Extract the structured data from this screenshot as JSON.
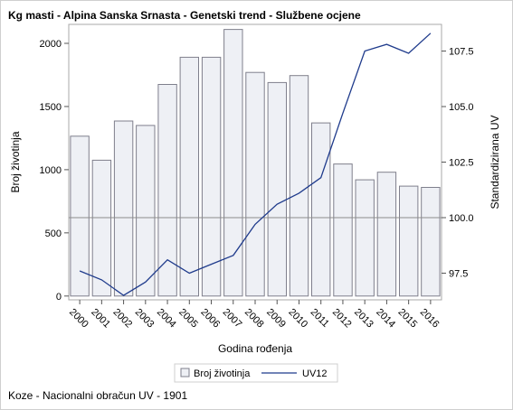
{
  "title": "Kg masti - Alpina Sanska Srnasta - Genetski trend - Službene ocjene",
  "footnote": "Koze - Nacionalni obračun UV - 1901",
  "chart_data": {
    "type": "bar+line",
    "categories": [
      "2000",
      "2001",
      "2002",
      "2003",
      "2004",
      "2005",
      "2006",
      "2007",
      "2008",
      "2009",
      "2010",
      "2011",
      "2012",
      "2013",
      "2014",
      "2015",
      "2016"
    ],
    "series": [
      {
        "name": "Broj životinja",
        "type": "bar",
        "axis": "left",
        "values": [
          1265,
          1075,
          1385,
          1350,
          1675,
          1890,
          1890,
          2110,
          1770,
          1690,
          1745,
          1370,
          1045,
          920,
          980,
          870,
          860
        ],
        "color": "#eef0f5",
        "border": "#7f7f8c"
      },
      {
        "name": "UV12",
        "type": "line",
        "axis": "right",
        "values": [
          97.6,
          97.2,
          96.5,
          97.1,
          98.1,
          97.5,
          97.9,
          98.3,
          99.7,
          100.6,
          101.1,
          101.8,
          104.7,
          107.5,
          107.8,
          107.4,
          108.3
        ],
        "color": "#1f3b8c"
      }
    ],
    "xlabel": "Godina rođenja",
    "ylabel": "Broj životinja",
    "y2label": "Standardizirana UV",
    "ylim": [
      -30,
      2150
    ],
    "y2lim": [
      96.3,
      108.7
    ],
    "yticks": [
      0,
      500,
      1000,
      1500,
      2000
    ],
    "y2ticks": [
      97.5,
      100.0,
      102.5,
      105.0,
      107.5
    ],
    "y2tick_labels": [
      "97.5",
      "100.0",
      "102.5",
      "105.0",
      "107.5"
    ],
    "reference_line": 100.0,
    "grid": false,
    "legend": "bottom-center"
  }
}
